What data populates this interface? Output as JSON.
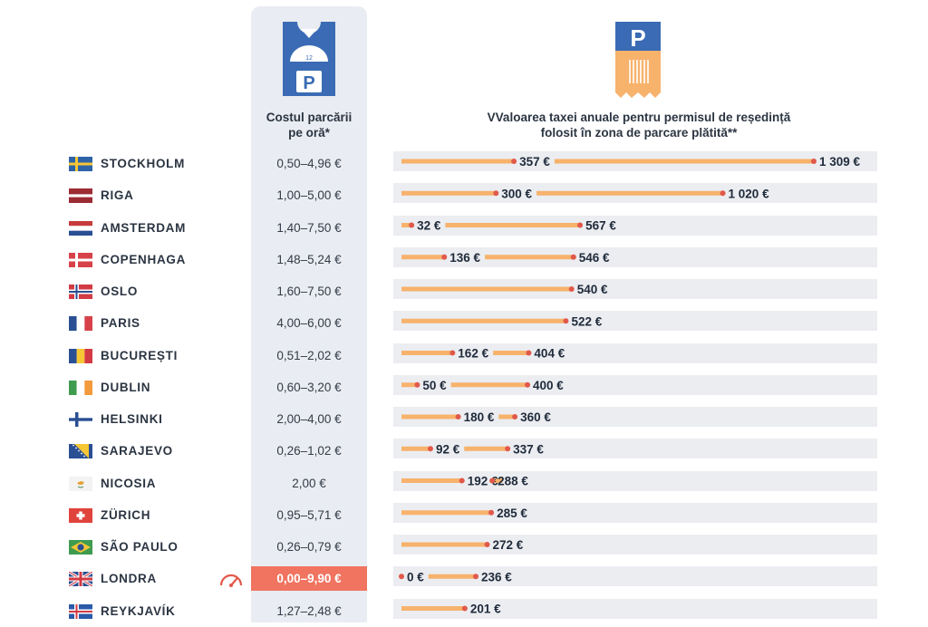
{
  "headers": {
    "hourly": [
      "Costul parcării",
      "pe oră*"
    ],
    "annual": [
      "VValoarea taxei anuale pentru permisul de reședință",
      "folosit în zona de parcare plătită**"
    ]
  },
  "colors": {
    "bar": "#f7b26c",
    "dot": "#e1594a",
    "track": "#ebedf1",
    "highlight": "#f07460"
  },
  "chart_data": {
    "type": "bar",
    "unit": "€",
    "categories": [
      "STOCKHOLM",
      "RIGA",
      "AMSTERDAM",
      "COPENHAGA",
      "OSLO",
      "PARIS",
      "BUCUREȘTI",
      "DUBLIN",
      "HELSINKI",
      "SARAJEVO",
      "NICOSIA",
      "ZÜRICH",
      "SÃO PAULO",
      "LONDRA",
      "REYKJAVÍK"
    ],
    "rows": [
      {
        "city": "STOCKHOLM",
        "flag": "sweden-flag",
        "hourly": "0,50–4,96 €",
        "min": 357,
        "max": 1309,
        "min_label": "357 €",
        "max_label": "1 309 €"
      },
      {
        "city": "RIGA",
        "flag": "latvia-flag",
        "hourly": "1,00–5,00 €",
        "min": 300,
        "max": 1020,
        "min_label": "300 €",
        "max_label": "1 020 €"
      },
      {
        "city": "AMSTERDAM",
        "flag": "netherlands-flag",
        "hourly": "1,40–7,50 €",
        "min": 32,
        "max": 567,
        "min_label": "32 €",
        "max_label": "567 €"
      },
      {
        "city": "COPENHAGA",
        "flag": "denmark-flag",
        "hourly": "1,48–5,24 €",
        "min": 136,
        "max": 546,
        "min_label": "136 €",
        "max_label": "546 €"
      },
      {
        "city": "OSLO",
        "flag": "norway-flag",
        "hourly": "1,60–7,50 €",
        "min": null,
        "max": 540,
        "min_label": "",
        "max_label": "540 €"
      },
      {
        "city": "PARIS",
        "flag": "france-flag",
        "hourly": "4,00–6,00 €",
        "min": null,
        "max": 522,
        "min_label": "",
        "max_label": "522 €"
      },
      {
        "city": "BUCUREȘTI",
        "flag": "romania-flag",
        "hourly": "0,51–2,02 €",
        "min": 162,
        "max": 404,
        "min_label": "162 €",
        "max_label": "404 €"
      },
      {
        "city": "DUBLIN",
        "flag": "ireland-flag",
        "hourly": "0,60–3,20 €",
        "min": 50,
        "max": 400,
        "min_label": "50 €",
        "max_label": "400 €"
      },
      {
        "city": "HELSINKI",
        "flag": "finland-flag",
        "hourly": "2,00–4,00 €",
        "min": 180,
        "max": 360,
        "min_label": "180 €",
        "max_label": "360 €"
      },
      {
        "city": "SARAJEVO",
        "flag": "bosnia-flag",
        "hourly": "0,26–1,02 €",
        "min": 92,
        "max": 337,
        "min_label": "92 €",
        "max_label": "337 €"
      },
      {
        "city": "NICOSIA",
        "flag": "cyprus-flag",
        "hourly": "2,00 €",
        "min": 192,
        "max": 288,
        "min_label": "192 €",
        "max_label": "288 €"
      },
      {
        "city": "ZÜRICH",
        "flag": "switzerland-flag",
        "hourly": "0,95–5,71 €",
        "min": null,
        "max": 285,
        "min_label": "",
        "max_label": "285 €"
      },
      {
        "city": "SÃO PAULO",
        "flag": "brazil-flag",
        "hourly": "0,26–0,79 €",
        "min": null,
        "max": 272,
        "min_label": "",
        "max_label": "272 €"
      },
      {
        "city": "LONDRA",
        "flag": "uk-flag",
        "hourly": "0,00–9,90 €",
        "min": 0,
        "max": 236,
        "min_label": "0 €",
        "max_label": "236 €",
        "highlight": true
      },
      {
        "city": "REYKJAVÍK",
        "flag": "iceland-flag",
        "hourly": "1,27–2,48 €",
        "min": null,
        "max": 201,
        "min_label": "",
        "max_label": "201 €"
      }
    ]
  }
}
